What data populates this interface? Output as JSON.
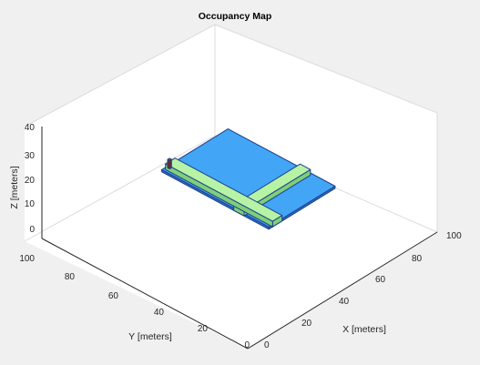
{
  "chart_data": {
    "type": "scatter3d",
    "title": "Occupancy Map",
    "xlabel": "X [meters]",
    "ylabel": "Y [meters]",
    "zlabel": "Z [meters]",
    "xlim": [
      0,
      100
    ],
    "ylim": [
      0,
      100
    ],
    "zlim": [
      0,
      40
    ],
    "xticks": [
      "0",
      "20",
      "40",
      "60",
      "80",
      "100"
    ],
    "yticks": [
      "0",
      "20",
      "40",
      "60",
      "80",
      "100"
    ],
    "zticks": [
      "0",
      "10",
      "20",
      "30",
      "40"
    ],
    "grid": false,
    "view": "3d",
    "colors": {
      "background": "#f0f0f0",
      "axes_face": "#ffffff",
      "ground": "#42a5f5",
      "ground_edge": "#1e3f8a",
      "road": "#b6f3a5",
      "road_edge": "#2e8b57",
      "axis_line": "#262626",
      "box_line": "#dcdcdc"
    },
    "objects": [
      {
        "name": "ground",
        "x": [
          60,
          95
        ],
        "y": [
          45,
          97
        ],
        "z": [
          0,
          0
        ]
      },
      {
        "name": "road-a",
        "x": [
          60,
          95
        ],
        "y": [
          57,
          62
        ],
        "z": [
          0,
          2
        ]
      },
      {
        "name": "road-b",
        "x": [
          62,
          67
        ],
        "y": [
          45,
          97
        ],
        "z": [
          0,
          2
        ]
      },
      {
        "name": "object",
        "x": [
          62,
          63
        ],
        "y": [
          95,
          96
        ],
        "z": [
          1,
          4
        ]
      }
    ]
  }
}
